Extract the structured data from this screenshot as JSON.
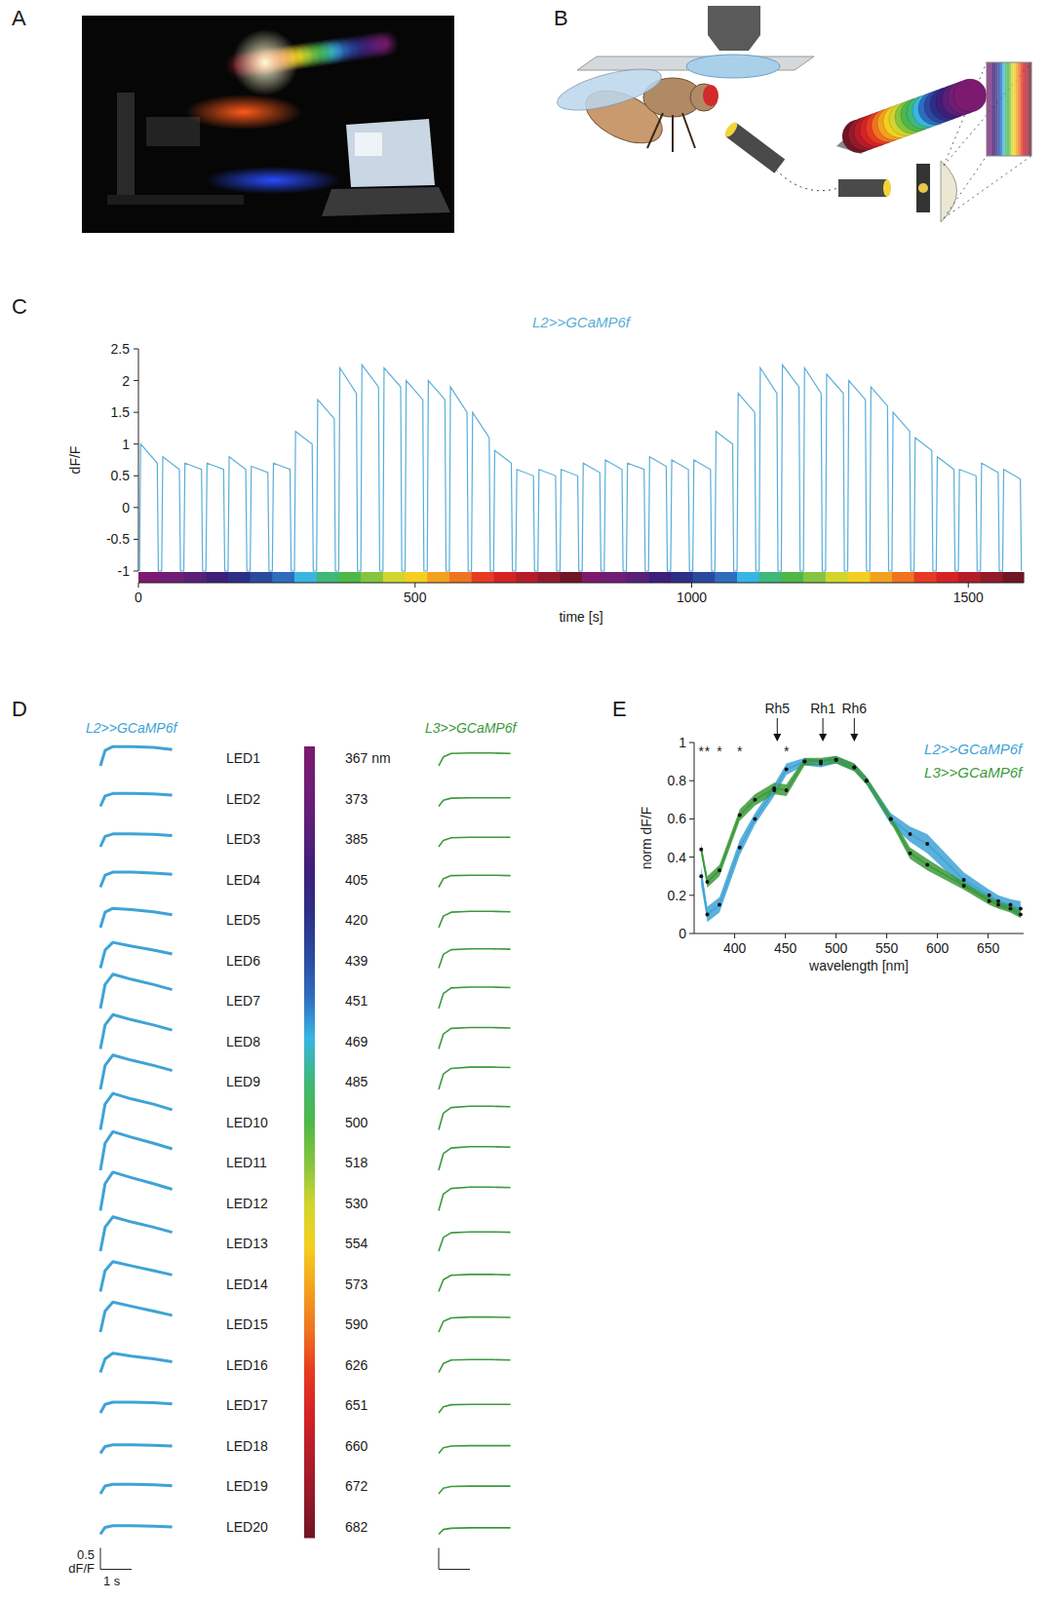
{
  "panel_labels": [
    "A",
    "B",
    "C",
    "D",
    "E"
  ],
  "chart_data": [
    {
      "type": "line",
      "title": "L2>>GCaMP6f",
      "x_label": "time [s]",
      "y_label": "dF/F",
      "color": "#5aaed8",
      "xlim": [
        0,
        1600
      ],
      "ylim": [
        -1,
        2.5
      ],
      "xticks": [
        0,
        500,
        1000,
        1500
      ],
      "yticks": [
        -1,
        -0.5,
        0,
        0.5,
        1,
        1.5,
        2,
        2.5
      ],
      "x": [
        2,
        4,
        34,
        36,
        42,
        44,
        74,
        76,
        82,
        84,
        114,
        116,
        122,
        124,
        154,
        156,
        162,
        164,
        194,
        196,
        202,
        204,
        234,
        236,
        242,
        244,
        274,
        276,
        282,
        284,
        314,
        316,
        322,
        324,
        354,
        356,
        362,
        364,
        394,
        396,
        402,
        404,
        434,
        436,
        442,
        444,
        474,
        476,
        482,
        484,
        514,
        516,
        522,
        524,
        554,
        556,
        562,
        564,
        594,
        596,
        602,
        604,
        634,
        636,
        642,
        644,
        674,
        676,
        682,
        684,
        714,
        716,
        722,
        724,
        754,
        756,
        762,
        764,
        794,
        796,
        802,
        804,
        834,
        836,
        842,
        844,
        874,
        876,
        882,
        884,
        914,
        916,
        922,
        924,
        954,
        956,
        962,
        964,
        994,
        996,
        1002,
        1004,
        1034,
        1036,
        1042,
        1044,
        1074,
        1076,
        1082,
        1084,
        1114,
        1116,
        1122,
        1124,
        1154,
        1156,
        1162,
        1164,
        1194,
        1196,
        1202,
        1204,
        1234,
        1236,
        1242,
        1244,
        1274,
        1276,
        1282,
        1284,
        1314,
        1316,
        1322,
        1324,
        1354,
        1356,
        1362,
        1364,
        1394,
        1396,
        1402,
        1404,
        1434,
        1436,
        1442,
        1444,
        1474,
        1476,
        1482,
        1484,
        1514,
        1516,
        1522,
        1524,
        1554,
        1556,
        1562,
        1564,
        1594,
        1596
      ],
      "values": [
        -1,
        1.0,
        0.7,
        -1,
        -1,
        0.8,
        0.6,
        -1,
        -1,
        0.7,
        0.6,
        -1,
        -1,
        0.7,
        0.6,
        -1,
        -1,
        0.8,
        0.6,
        -1,
        -1,
        0.65,
        0.55,
        -1,
        -1,
        0.7,
        0.6,
        -1,
        -1,
        1.2,
        1.0,
        -1,
        -1,
        1.7,
        1.4,
        -1,
        -1,
        2.2,
        1.8,
        -1,
        -1,
        2.25,
        1.9,
        -1,
        -1,
        2.2,
        1.9,
        -1,
        -1,
        2.0,
        1.7,
        -1,
        -1,
        2.0,
        1.7,
        -1,
        -1,
        1.9,
        1.5,
        -1,
        -1,
        1.5,
        1.1,
        -1,
        -1,
        0.9,
        0.7,
        -1,
        -1,
        0.6,
        0.5,
        -1,
        -1,
        0.6,
        0.5,
        -1,
        -1,
        0.6,
        0.5,
        -1,
        -1,
        0.7,
        0.55,
        -1,
        -1,
        0.75,
        0.6,
        -1,
        -1,
        0.7,
        0.6,
        -1,
        -1,
        0.8,
        0.65,
        -1,
        -1,
        0.75,
        0.6,
        -1,
        -1,
        0.75,
        0.6,
        -1,
        -1,
        1.2,
        1.0,
        -1,
        -1,
        1.8,
        1.5,
        -1,
        -1,
        2.2,
        1.8,
        -1,
        -1,
        2.25,
        1.9,
        -1,
        -1,
        2.2,
        1.8,
        -1,
        -1,
        2.1,
        1.8,
        -1,
        -1,
        2.0,
        1.7,
        -1,
        -1,
        1.9,
        1.6,
        -1,
        -1,
        1.5,
        1.2,
        -1,
        -1,
        1.1,
        0.9,
        -1,
        -1,
        0.8,
        0.6,
        -1,
        -1,
        0.6,
        0.5,
        -1,
        -1,
        0.7,
        0.55,
        -1,
        -1,
        0.6,
        0.45,
        -1
      ]
    },
    {
      "type": "line",
      "categories": [
        "LED1",
        "LED2",
        "LED3",
        "LED4",
        "LED5",
        "LED6",
        "LED7",
        "LED8",
        "LED9",
        "LED10",
        "LED11",
        "LED12",
        "LED13",
        "LED14",
        "LED15",
        "LED16",
        "LED17",
        "LED18",
        "LED19",
        "LED20"
      ],
      "wavelength_labels": [
        "367 nm",
        "373",
        "385",
        "405",
        "420",
        "439",
        "451",
        "469",
        "485",
        "500",
        "518",
        "530",
        "554",
        "573",
        "590",
        "626",
        "651",
        "660",
        "672",
        "682"
      ],
      "time": [
        0,
        0.15,
        0.4,
        1,
        1.7,
        2.3
      ],
      "scale_bar": {
        "y": 0.5,
        "y_label": "dF/F",
        "x": 1,
        "x_label": "1 s"
      },
      "series": [
        {
          "name": "L2>>GCaMP6f",
          "color": "#3fa3d6",
          "values": [
            [
              0,
              0.36,
              0.45,
              0.45,
              0.43,
              0.38
            ],
            [
              0,
              0.24,
              0.3,
              0.3,
              0.29,
              0.26
            ],
            [
              0,
              0.24,
              0.3,
              0.3,
              0.29,
              0.26
            ],
            [
              0,
              0.28,
              0.35,
              0.35,
              0.33,
              0.3
            ],
            [
              0,
              0.36,
              0.45,
              0.42,
              0.37,
              0.3
            ],
            [
              0,
              0.42,
              0.6,
              0.51,
              0.42,
              0.33
            ],
            [
              0,
              0.56,
              0.8,
              0.68,
              0.56,
              0.44
            ],
            [
              0,
              0.56,
              0.8,
              0.68,
              0.56,
              0.44
            ],
            [
              0,
              0.56,
              0.8,
              0.68,
              0.56,
              0.44
            ],
            [
              0,
              0.6,
              0.85,
              0.72,
              0.6,
              0.47
            ],
            [
              0,
              0.63,
              0.9,
              0.77,
              0.63,
              0.5
            ],
            [
              0,
              0.63,
              0.9,
              0.77,
              0.63,
              0.5
            ],
            [
              0,
              0.56,
              0.8,
              0.68,
              0.56,
              0.44
            ],
            [
              0,
              0.49,
              0.7,
              0.6,
              0.49,
              0.39
            ],
            [
              0,
              0.49,
              0.7,
              0.6,
              0.49,
              0.39
            ],
            [
              0,
              0.32,
              0.45,
              0.38,
              0.32,
              0.25
            ],
            [
              0,
              0.2,
              0.25,
              0.25,
              0.24,
              0.21
            ],
            [
              0,
              0.16,
              0.2,
              0.2,
              0.19,
              0.17
            ],
            [
              0,
              0.18,
              0.22,
              0.22,
              0.21,
              0.19
            ],
            [
              0,
              0.16,
              0.2,
              0.2,
              0.19,
              0.17
            ]
          ]
        },
        {
          "name": "L3>>GCaMP6f",
          "color": "#3b9a3b",
          "values": [
            [
              0,
              0.21,
              0.29,
              0.3,
              0.3,
              0.29
            ],
            [
              0,
              0.14,
              0.19,
              0.2,
              0.2,
              0.2
            ],
            [
              0,
              0.15,
              0.21,
              0.22,
              0.22,
              0.22
            ],
            [
              0,
              0.2,
              0.27,
              0.28,
              0.28,
              0.27
            ],
            [
              0,
              0.27,
              0.36,
              0.38,
              0.38,
              0.37
            ],
            [
              0,
              0.32,
              0.43,
              0.45,
              0.45,
              0.44
            ],
            [
              0,
              0.35,
              0.48,
              0.5,
              0.5,
              0.49
            ],
            [
              0,
              0.35,
              0.48,
              0.5,
              0.5,
              0.49
            ],
            [
              0,
              0.36,
              0.49,
              0.52,
              0.52,
              0.51
            ],
            [
              0,
              0.39,
              0.52,
              0.55,
              0.55,
              0.54
            ],
            [
              0,
              0.39,
              0.52,
              0.55,
              0.55,
              0.54
            ],
            [
              0,
              0.39,
              0.52,
              0.55,
              0.55,
              0.54
            ],
            [
              0,
              0.32,
              0.43,
              0.45,
              0.45,
              0.44
            ],
            [
              0,
              0.28,
              0.38,
              0.4,
              0.4,
              0.39
            ],
            [
              0,
              0.25,
              0.33,
              0.35,
              0.35,
              0.34
            ],
            [
              0,
              0.21,
              0.29,
              0.3,
              0.3,
              0.29
            ],
            [
              0,
              0.14,
              0.19,
              0.2,
              0.2,
              0.2
            ],
            [
              0,
              0.13,
              0.17,
              0.18,
              0.18,
              0.18
            ],
            [
              0,
              0.13,
              0.17,
              0.18,
              0.18,
              0.18
            ],
            [
              0,
              0.11,
              0.14,
              0.15,
              0.15,
              0.15
            ]
          ]
        }
      ]
    },
    {
      "type": "line",
      "x_label": "wavelength [nm]",
      "y_label": "norm dF/F",
      "legend": "top right",
      "marker": "dot",
      "x": [
        367,
        373,
        385,
        405,
        420,
        439,
        451,
        469,
        485,
        500,
        518,
        530,
        554,
        573,
        590,
        626,
        651,
        660,
        672,
        682
      ],
      "xlim": [
        360,
        685
      ],
      "ylim": [
        0,
        1
      ],
      "xticks": [
        400,
        450,
        500,
        550,
        600,
        650
      ],
      "yticks": [
        0,
        0.2,
        0.4,
        0.6,
        0.8,
        1
      ],
      "series": [
        {
          "name": "L2>>GCaMP6f",
          "color": "#3fa3d6",
          "values": [
            0.3,
            0.1,
            0.15,
            0.45,
            0.6,
            0.75,
            0.86,
            0.9,
            0.89,
            0.91,
            0.87,
            0.8,
            0.6,
            0.52,
            0.47,
            0.28,
            0.2,
            0.17,
            0.15,
            0.13
          ],
          "errors": [
            0.05,
            0.04,
            0.04,
            0.04,
            0.03,
            0.03,
            0.03,
            0.02,
            0.02,
            0.02,
            0.02,
            0.02,
            0.03,
            0.04,
            0.05,
            0.04,
            0.03,
            0.03,
            0.03,
            0.04
          ]
        },
        {
          "name": "L3>>GCaMP6f",
          "color": "#3b9a3b",
          "values": [
            0.44,
            0.27,
            0.33,
            0.62,
            0.7,
            0.76,
            0.75,
            0.9,
            0.9,
            0.91,
            0.87,
            0.8,
            0.6,
            0.42,
            0.36,
            0.25,
            0.17,
            0.15,
            0.13,
            0.1
          ],
          "errors": [
            0.03,
            0.03,
            0.03,
            0.03,
            0.03,
            0.03,
            0.03,
            0.02,
            0.02,
            0.02,
            0.02,
            0.02,
            0.02,
            0.03,
            0.03,
            0.02,
            0.02,
            0.02,
            0.02,
            0.02
          ]
        }
      ],
      "annotations": [
        {
          "x": 442,
          "label": "Rh5"
        },
        {
          "x": 487,
          "label": "Rh1"
        },
        {
          "x": 518,
          "label": "Rh6"
        }
      ],
      "significance": [
        {
          "x": 367,
          "label": "*"
        },
        {
          "x": 373,
          "label": "*"
        },
        {
          "x": 385,
          "label": "*"
        },
        {
          "x": 405,
          "label": "*"
        },
        {
          "x": 451,
          "label": "*"
        }
      ]
    }
  ]
}
